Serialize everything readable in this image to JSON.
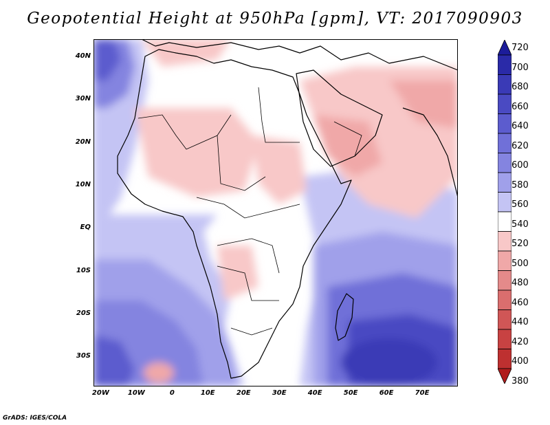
{
  "title": "Geopotential Height at 950hPa [gpm], VT: 2017090903",
  "footer": "GrADS: IGES/COLA",
  "map": {
    "lat_labels": [
      "40N",
      "30N",
      "20N",
      "10N",
      "EQ",
      "10S",
      "20S",
      "30S"
    ],
    "lon_labels": [
      "20W",
      "10W",
      "0",
      "10E",
      "20E",
      "30E",
      "40E",
      "50E",
      "60E",
      "70E"
    ],
    "lat_values": [
      40,
      30,
      20,
      10,
      0,
      -10,
      -20,
      -30
    ],
    "lon_values": [
      -20,
      -10,
      0,
      10,
      20,
      30,
      40,
      50,
      60,
      70
    ],
    "extent": {
      "lon_min": -22,
      "lon_max": 80,
      "lat_min": -37,
      "lat_max": 44
    }
  },
  "colorbar": {
    "labels": [
      "720",
      "700",
      "680",
      "660",
      "640",
      "620",
      "600",
      "580",
      "560",
      "540",
      "520",
      "500",
      "480",
      "460",
      "440",
      "420",
      "400",
      "380"
    ],
    "colors": [
      "#1c1c9a",
      "#2a2aa8",
      "#3a3ab6",
      "#4a4ac2",
      "#5c5cce",
      "#7070d8",
      "#8484e0",
      "#a0a0ea",
      "#c4c4f4",
      "#ffffff",
      "#f8c8c8",
      "#f0a8a8",
      "#e48a8a",
      "#da6e6e",
      "#d05656",
      "#c84242",
      "#be3030",
      "#b01c1c"
    ]
  }
}
